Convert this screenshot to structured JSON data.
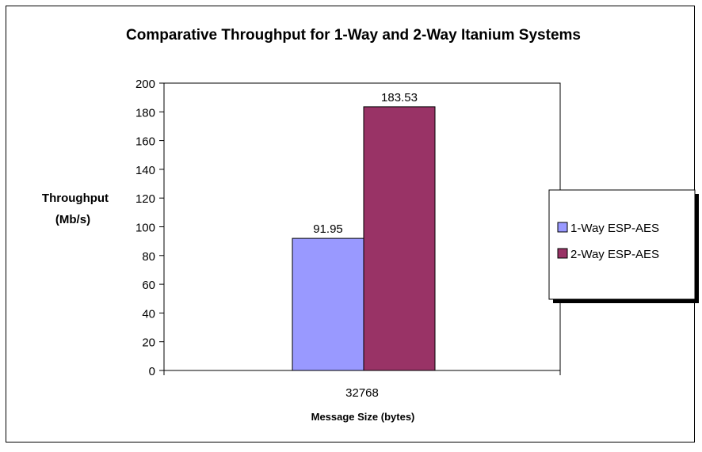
{
  "chart_data": {
    "type": "bar",
    "title": "Comparative Throughput for 1-Way and 2-Way Itanium Systems",
    "ylabel_lines": [
      "Throughput",
      "(Mb/s)"
    ],
    "xlabel": "Message Size (bytes)",
    "categories": [
      "32768"
    ],
    "ylim": [
      0,
      200
    ],
    "yticks": [
      0,
      20,
      40,
      60,
      80,
      100,
      120,
      140,
      160,
      180,
      200
    ],
    "grid": false,
    "legend_position": "right",
    "series": [
      {
        "name": "1-Way ESP-AES",
        "values": [
          91.95
        ],
        "color": "#9999ff",
        "label": "91.95"
      },
      {
        "name": "2-Way ESP-AES",
        "values": [
          183.53
        ],
        "color": "#993366",
        "label": "183.53"
      }
    ]
  }
}
